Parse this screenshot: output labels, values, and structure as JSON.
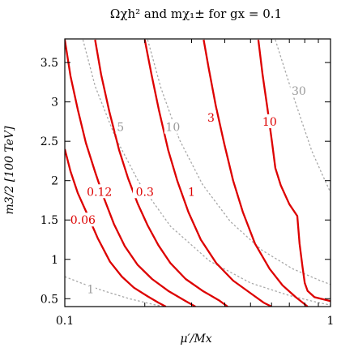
{
  "chart_data": {
    "type": "line",
    "title": "Ωχh² and mχ₁± for gx = 0.1",
    "xlabel": "μ′/Mx",
    "ylabel": "m3/2 [100 TeV]",
    "x_scale": "log",
    "xlim": [
      0.1,
      1
    ],
    "ylim": [
      0.4,
      3.8
    ],
    "x_ticks": [
      {
        "v": 0.1,
        "label": "0.1"
      },
      {
        "v": 1,
        "label": "1"
      }
    ],
    "y_ticks": [
      {
        "v": 0.5,
        "label": "0.5"
      },
      {
        "v": 1,
        "label": "1"
      },
      {
        "v": 1.5,
        "label": "1.5"
      },
      {
        "v": 2,
        "label": "2"
      },
      {
        "v": 2.5,
        "label": "2.5"
      },
      {
        "v": 3,
        "label": "3"
      },
      {
        "v": 3.5,
        "label": "3.5"
      }
    ],
    "grid": false,
    "relic_density_contours": {
      "color": "#dd0000",
      "series": [
        {
          "name": "0.06",
          "points": [
            [
              0.1,
              2.4
            ],
            [
              0.105,
              2.12
            ],
            [
              0.112,
              1.84
            ],
            [
              0.122,
              1.56
            ],
            [
              0.133,
              1.27
            ],
            [
              0.148,
              0.97
            ],
            [
              0.164,
              0.78
            ],
            [
              0.182,
              0.64
            ],
            [
              0.205,
              0.53
            ],
            [
              0.225,
              0.45
            ],
            [
              0.24,
              0.4
            ]
          ],
          "label": {
            "x": 0.117,
            "y": 1.5
          }
        },
        {
          "name": "0.12",
          "points": [
            [
              0.1,
              3.79
            ],
            [
              0.105,
              3.33
            ],
            [
              0.112,
              2.9
            ],
            [
              0.12,
              2.48
            ],
            [
              0.13,
              2.11
            ],
            [
              0.14,
              1.79
            ],
            [
              0.153,
              1.45
            ],
            [
              0.168,
              1.17
            ],
            [
              0.188,
              0.93
            ],
            [
              0.213,
              0.75
            ],
            [
              0.245,
              0.6
            ],
            [
              0.285,
              0.47
            ],
            [
              0.31,
              0.4
            ]
          ],
          "label": {
            "x": 0.135,
            "y": 1.86
          }
        },
        {
          "name": "0.3",
          "points": [
            [
              0.13,
              3.79
            ],
            [
              0.137,
              3.35
            ],
            [
              0.147,
              2.88
            ],
            [
              0.16,
              2.39
            ],
            [
              0.173,
              2.03
            ],
            [
              0.188,
              1.71
            ],
            [
              0.205,
              1.43
            ],
            [
              0.225,
              1.18
            ],
            [
              0.25,
              0.95
            ],
            [
              0.285,
              0.75
            ],
            [
              0.33,
              0.6
            ],
            [
              0.38,
              0.48
            ],
            [
              0.41,
              0.4
            ]
          ],
          "label": {
            "x": 0.2,
            "y": 1.86
          }
        },
        {
          "name": "1",
          "points": [
            [
              0.2,
              3.79
            ],
            [
              0.212,
              3.35
            ],
            [
              0.226,
              2.9
            ],
            [
              0.245,
              2.39
            ],
            [
              0.265,
              2.0
            ],
            [
              0.292,
              1.6
            ],
            [
              0.325,
              1.25
            ],
            [
              0.372,
              0.95
            ],
            [
              0.43,
              0.73
            ],
            [
              0.5,
              0.57
            ],
            [
              0.56,
              0.45
            ],
            [
              0.6,
              0.4
            ]
          ],
          "label": {
            "x": 0.3,
            "y": 1.86
          }
        },
        {
          "name": "3",
          "points": [
            [
              0.333,
              3.79
            ],
            [
              0.348,
              3.43
            ],
            [
              0.37,
              2.95
            ],
            [
              0.398,
              2.47
            ],
            [
              0.43,
              2.0
            ],
            [
              0.468,
              1.6
            ],
            [
              0.52,
              1.2
            ],
            [
              0.59,
              0.88
            ],
            [
              0.66,
              0.67
            ],
            [
              0.74,
              0.52
            ],
            [
              0.8,
              0.43
            ],
            [
              0.82,
              0.4
            ]
          ],
          "label": {
            "x": 0.355,
            "y": 2.8
          }
        },
        {
          "name": "10",
          "points": [
            [
              0.535,
              3.79
            ],
            [
              0.555,
              3.35
            ],
            [
              0.58,
              2.9
            ],
            [
              0.603,
              2.48
            ],
            [
              0.62,
              2.16
            ],
            [
              0.65,
              1.94
            ],
            [
              0.7,
              1.7
            ],
            [
              0.75,
              1.55
            ],
            [
              0.765,
              1.2
            ],
            [
              0.785,
              0.9
            ],
            [
              0.8,
              0.7
            ],
            [
              0.82,
              0.6
            ],
            [
              0.87,
              0.52
            ],
            [
              1.0,
              0.47
            ]
          ],
          "label": {
            "x": 0.59,
            "y": 2.75
          }
        }
      ]
    },
    "chargino_mass_contours": {
      "color": "#a8a8a8",
      "dashed": true,
      "series": [
        {
          "name": "1",
          "points": [
            [
              0.1,
              0.78
            ],
            [
              0.115,
              0.7
            ],
            [
              0.14,
              0.6
            ],
            [
              0.175,
              0.5
            ],
            [
              0.22,
              0.42
            ],
            [
              0.24,
              0.4
            ]
          ],
          "label": {
            "x": 0.125,
            "y": 0.62
          }
        },
        {
          "name": "5",
          "points": [
            [
              0.117,
              3.79
            ],
            [
              0.13,
              3.2
            ],
            [
              0.155,
              2.55
            ],
            [
              0.19,
              1.98
            ],
            [
              0.25,
              1.42
            ],
            [
              0.35,
              0.98
            ],
            [
              0.5,
              0.7
            ],
            [
              0.7,
              0.54
            ],
            [
              0.9,
              0.45
            ],
            [
              1.0,
              0.42
            ]
          ],
          "label": {
            "x": 0.162,
            "y": 2.68
          }
        },
        {
          "name": "10",
          "points": [
            [
              0.205,
              3.79
            ],
            [
              0.23,
              3.18
            ],
            [
              0.27,
              2.52
            ],
            [
              0.33,
              1.95
            ],
            [
              0.42,
              1.48
            ],
            [
              0.55,
              1.12
            ],
            [
              0.72,
              0.88
            ],
            [
              0.9,
              0.74
            ],
            [
              1.0,
              0.68
            ]
          ],
          "label": {
            "x": 0.255,
            "y": 2.68
          }
        },
        {
          "name": "30",
          "points": [
            [
              0.62,
              3.79
            ],
            [
              0.66,
              3.5
            ],
            [
              0.72,
              3.1
            ],
            [
              0.78,
              2.75
            ],
            [
              0.85,
              2.38
            ],
            [
              0.93,
              2.08
            ],
            [
              1.0,
              1.85
            ]
          ],
          "label": {
            "x": 0.76,
            "y": 3.14
          }
        }
      ]
    }
  }
}
